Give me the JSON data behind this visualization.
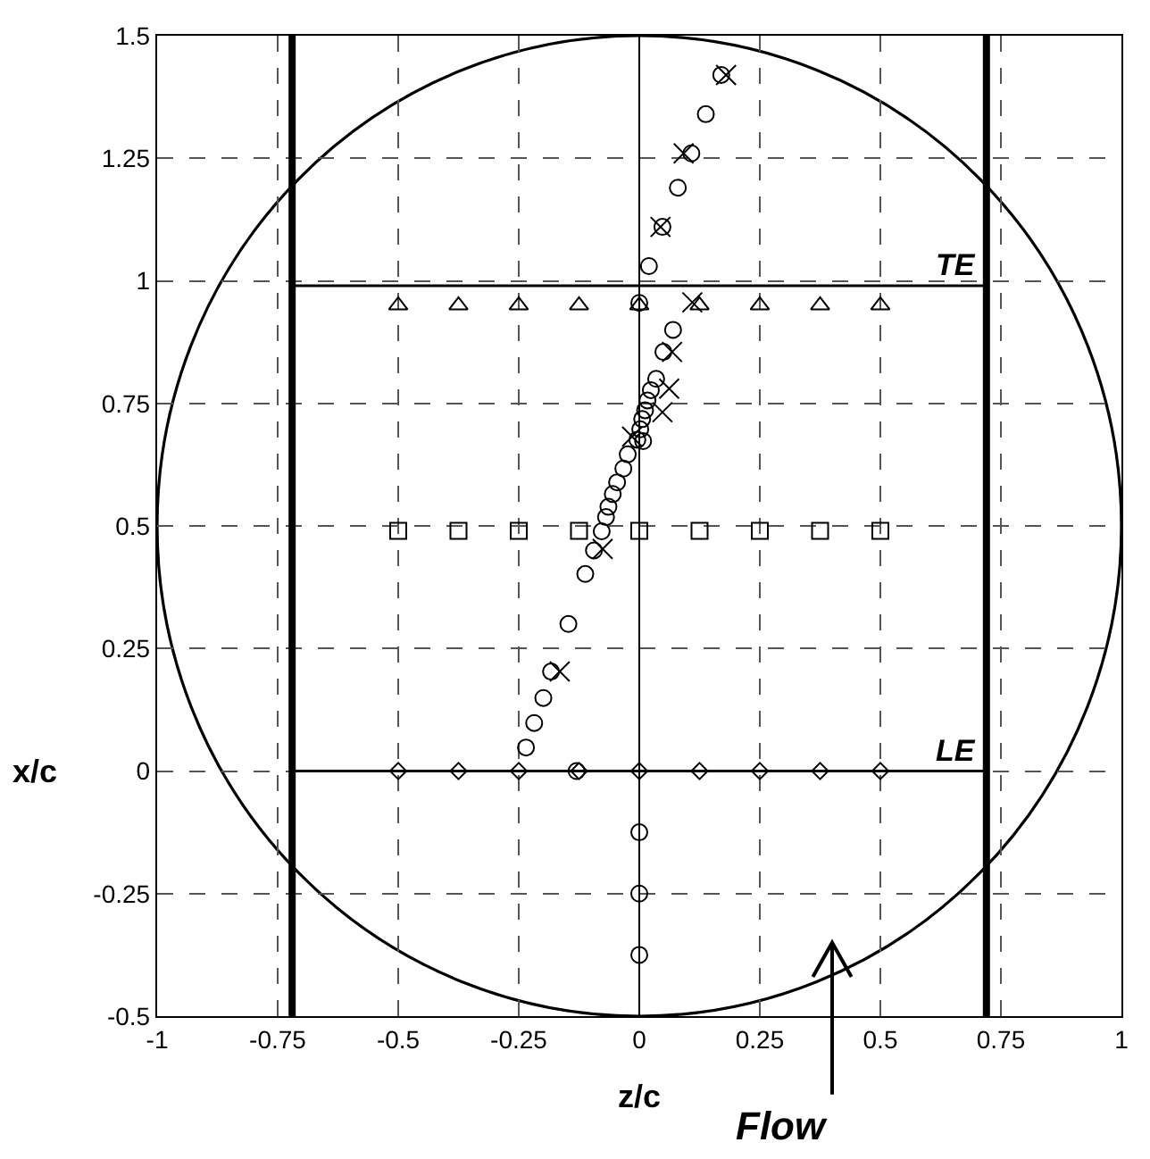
{
  "chart_data": {
    "type": "scatter",
    "xlabel": "z/c",
    "ylabel": "x/c",
    "xlim": [
      -1,
      1
    ],
    "xticks": [
      -1,
      -0.75,
      -0.5,
      -0.25,
      0,
      0.25,
      0.5,
      0.75,
      1
    ],
    "ylim": [
      -0.5,
      1.5
    ],
    "yticks": [
      -0.5,
      -0.25,
      0,
      0.25,
      0.5,
      0.75,
      1,
      1.25,
      1.5
    ],
    "grid": true,
    "ref_lines": [
      {
        "axis": "x",
        "value": -0.72,
        "color": "#000000",
        "line_style": "solid"
      },
      {
        "axis": "x",
        "value": 0.72,
        "color": "#000000",
        "line_style": "solid"
      },
      {
        "axis": "x",
        "value": 0,
        "color": "#000000",
        "line_style": "solid"
      }
    ],
    "annotations": [
      {
        "text": "TE",
        "x": 0.72,
        "y": 0.99
      },
      {
        "text": "LE",
        "x": 0.72,
        "y": 0
      },
      "Flow"
    ],
    "series": [
      {
        "type": "line",
        "color": "#000000",
        "marker": "none",
        "line_style": "solid",
        "x": [
          -0.72,
          0.72
        ],
        "values": [
          0.99,
          0.99
        ]
      },
      {
        "type": "line",
        "color": "#000000",
        "marker": "none",
        "line_style": "solid",
        "x": [
          -0.72,
          0.72
        ],
        "values": [
          0,
          0
        ]
      },
      {
        "color": "#000000",
        "marker": "triangle",
        "x": [
          -0.5,
          -0.375,
          -0.25,
          -0.125,
          0,
          0.125,
          0.25,
          0.375,
          0.5
        ],
        "values": [
          0.95,
          0.95,
          0.95,
          0.95,
          0.95,
          0.95,
          0.95,
          0.95,
          0.95
        ]
      },
      {
        "color": "#000000",
        "marker": "square",
        "x": [
          -0.5,
          -0.375,
          -0.25,
          -0.125,
          0,
          0.125,
          0.25,
          0.375,
          0.5
        ],
        "values": [
          0.49,
          0.49,
          0.49,
          0.49,
          0.49,
          0.49,
          0.49,
          0.49,
          0.49
        ]
      },
      {
        "color": "#000000",
        "marker": "diamond",
        "x": [
          -0.5,
          -0.375,
          -0.25,
          -0.125,
          0,
          0.125,
          0.25,
          0.375,
          0.5
        ],
        "values": [
          0,
          0,
          0,
          0,
          0,
          0,
          0,
          0,
          0
        ]
      },
      {
        "color": "#000000",
        "marker": "circle",
        "x": [
          0.17,
          0.138,
          0.108,
          0.08,
          0.048,
          0.02,
          0,
          0.07,
          0.05,
          0.035,
          0.024,
          0.017,
          0.012,
          0.006,
          0.002,
          0.008,
          -0.004,
          -0.024,
          -0.033,
          -0.046,
          -0.055,
          -0.064,
          -0.069,
          -0.078,
          -0.094,
          -0.112,
          -0.147,
          -0.183,
          -0.199,
          -0.218,
          -0.235,
          -0.13,
          0,
          0,
          0
        ],
        "values": [
          1.42,
          1.34,
          1.26,
          1.19,
          1.11,
          1.03,
          0.955,
          0.9,
          0.855,
          0.8,
          0.777,
          0.756,
          0.736,
          0.718,
          0.697,
          0.673,
          0.676,
          0.646,
          0.617,
          0.589,
          0.565,
          0.539,
          0.518,
          0.489,
          0.45,
          0.402,
          0.3,
          0.203,
          0.149,
          0.098,
          0.048,
          0,
          -0.125,
          -0.25,
          -0.375
        ]
      },
      {
        "color": "#000000",
        "marker": "cross",
        "x": [
          0.18,
          0.092,
          0.044,
          0.11,
          0.068,
          0.062,
          0.048,
          -0.015,
          -0.076,
          -0.165
        ],
        "values": [
          1.42,
          1.26,
          1.11,
          0.956,
          0.855,
          0.78,
          0.732,
          0.682,
          0.453,
          0.203
        ]
      }
    ]
  }
}
